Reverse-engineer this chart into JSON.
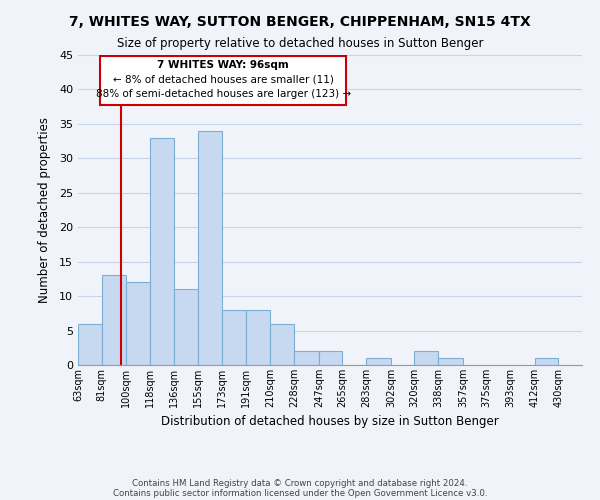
{
  "title": "7, WHITES WAY, SUTTON BENGER, CHIPPENHAM, SN15 4TX",
  "subtitle": "Size of property relative to detached houses in Sutton Benger",
  "xlabel": "Distribution of detached houses by size in Sutton Benger",
  "ylabel": "Number of detached properties",
  "bin_labels": [
    "63sqm",
    "81sqm",
    "100sqm",
    "118sqm",
    "136sqm",
    "155sqm",
    "173sqm",
    "191sqm",
    "210sqm",
    "228sqm",
    "247sqm",
    "265sqm",
    "283sqm",
    "302sqm",
    "320sqm",
    "338sqm",
    "357sqm",
    "375sqm",
    "393sqm",
    "412sqm",
    "430sqm"
  ],
  "bin_values_numeric": [
    63,
    81,
    100,
    118,
    136,
    155,
    173,
    191,
    210,
    228,
    247,
    265,
    283,
    302,
    320,
    338,
    357,
    375,
    393,
    412,
    430
  ],
  "bar_values": [
    6,
    13,
    12,
    33,
    11,
    34,
    8,
    8,
    6,
    2,
    2,
    0,
    1,
    0,
    2,
    1,
    0,
    0,
    0,
    1,
    0
  ],
  "bar_color": "#c6d9f0",
  "bar_edge_color": "#7bafd4",
  "property_line_x": 96,
  "ylim": [
    0,
    45
  ],
  "yticks": [
    0,
    5,
    10,
    15,
    20,
    25,
    30,
    35,
    40,
    45
  ],
  "annotation_title": "7 WHITES WAY: 96sqm",
  "annotation_line1": "← 8% of detached houses are smaller (11)",
  "annotation_line2": "88% of semi-detached houses are larger (123) →",
  "footer1": "Contains HM Land Registry data © Crown copyright and database right 2024.",
  "footer2": "Contains public sector information licensed under the Open Government Licence v3.0.",
  "background_color": "#f0f4fa",
  "grid_color": "#c8d4e8",
  "property_line_color": "#cc0000",
  "annotation_box_edge": "#cc0000"
}
